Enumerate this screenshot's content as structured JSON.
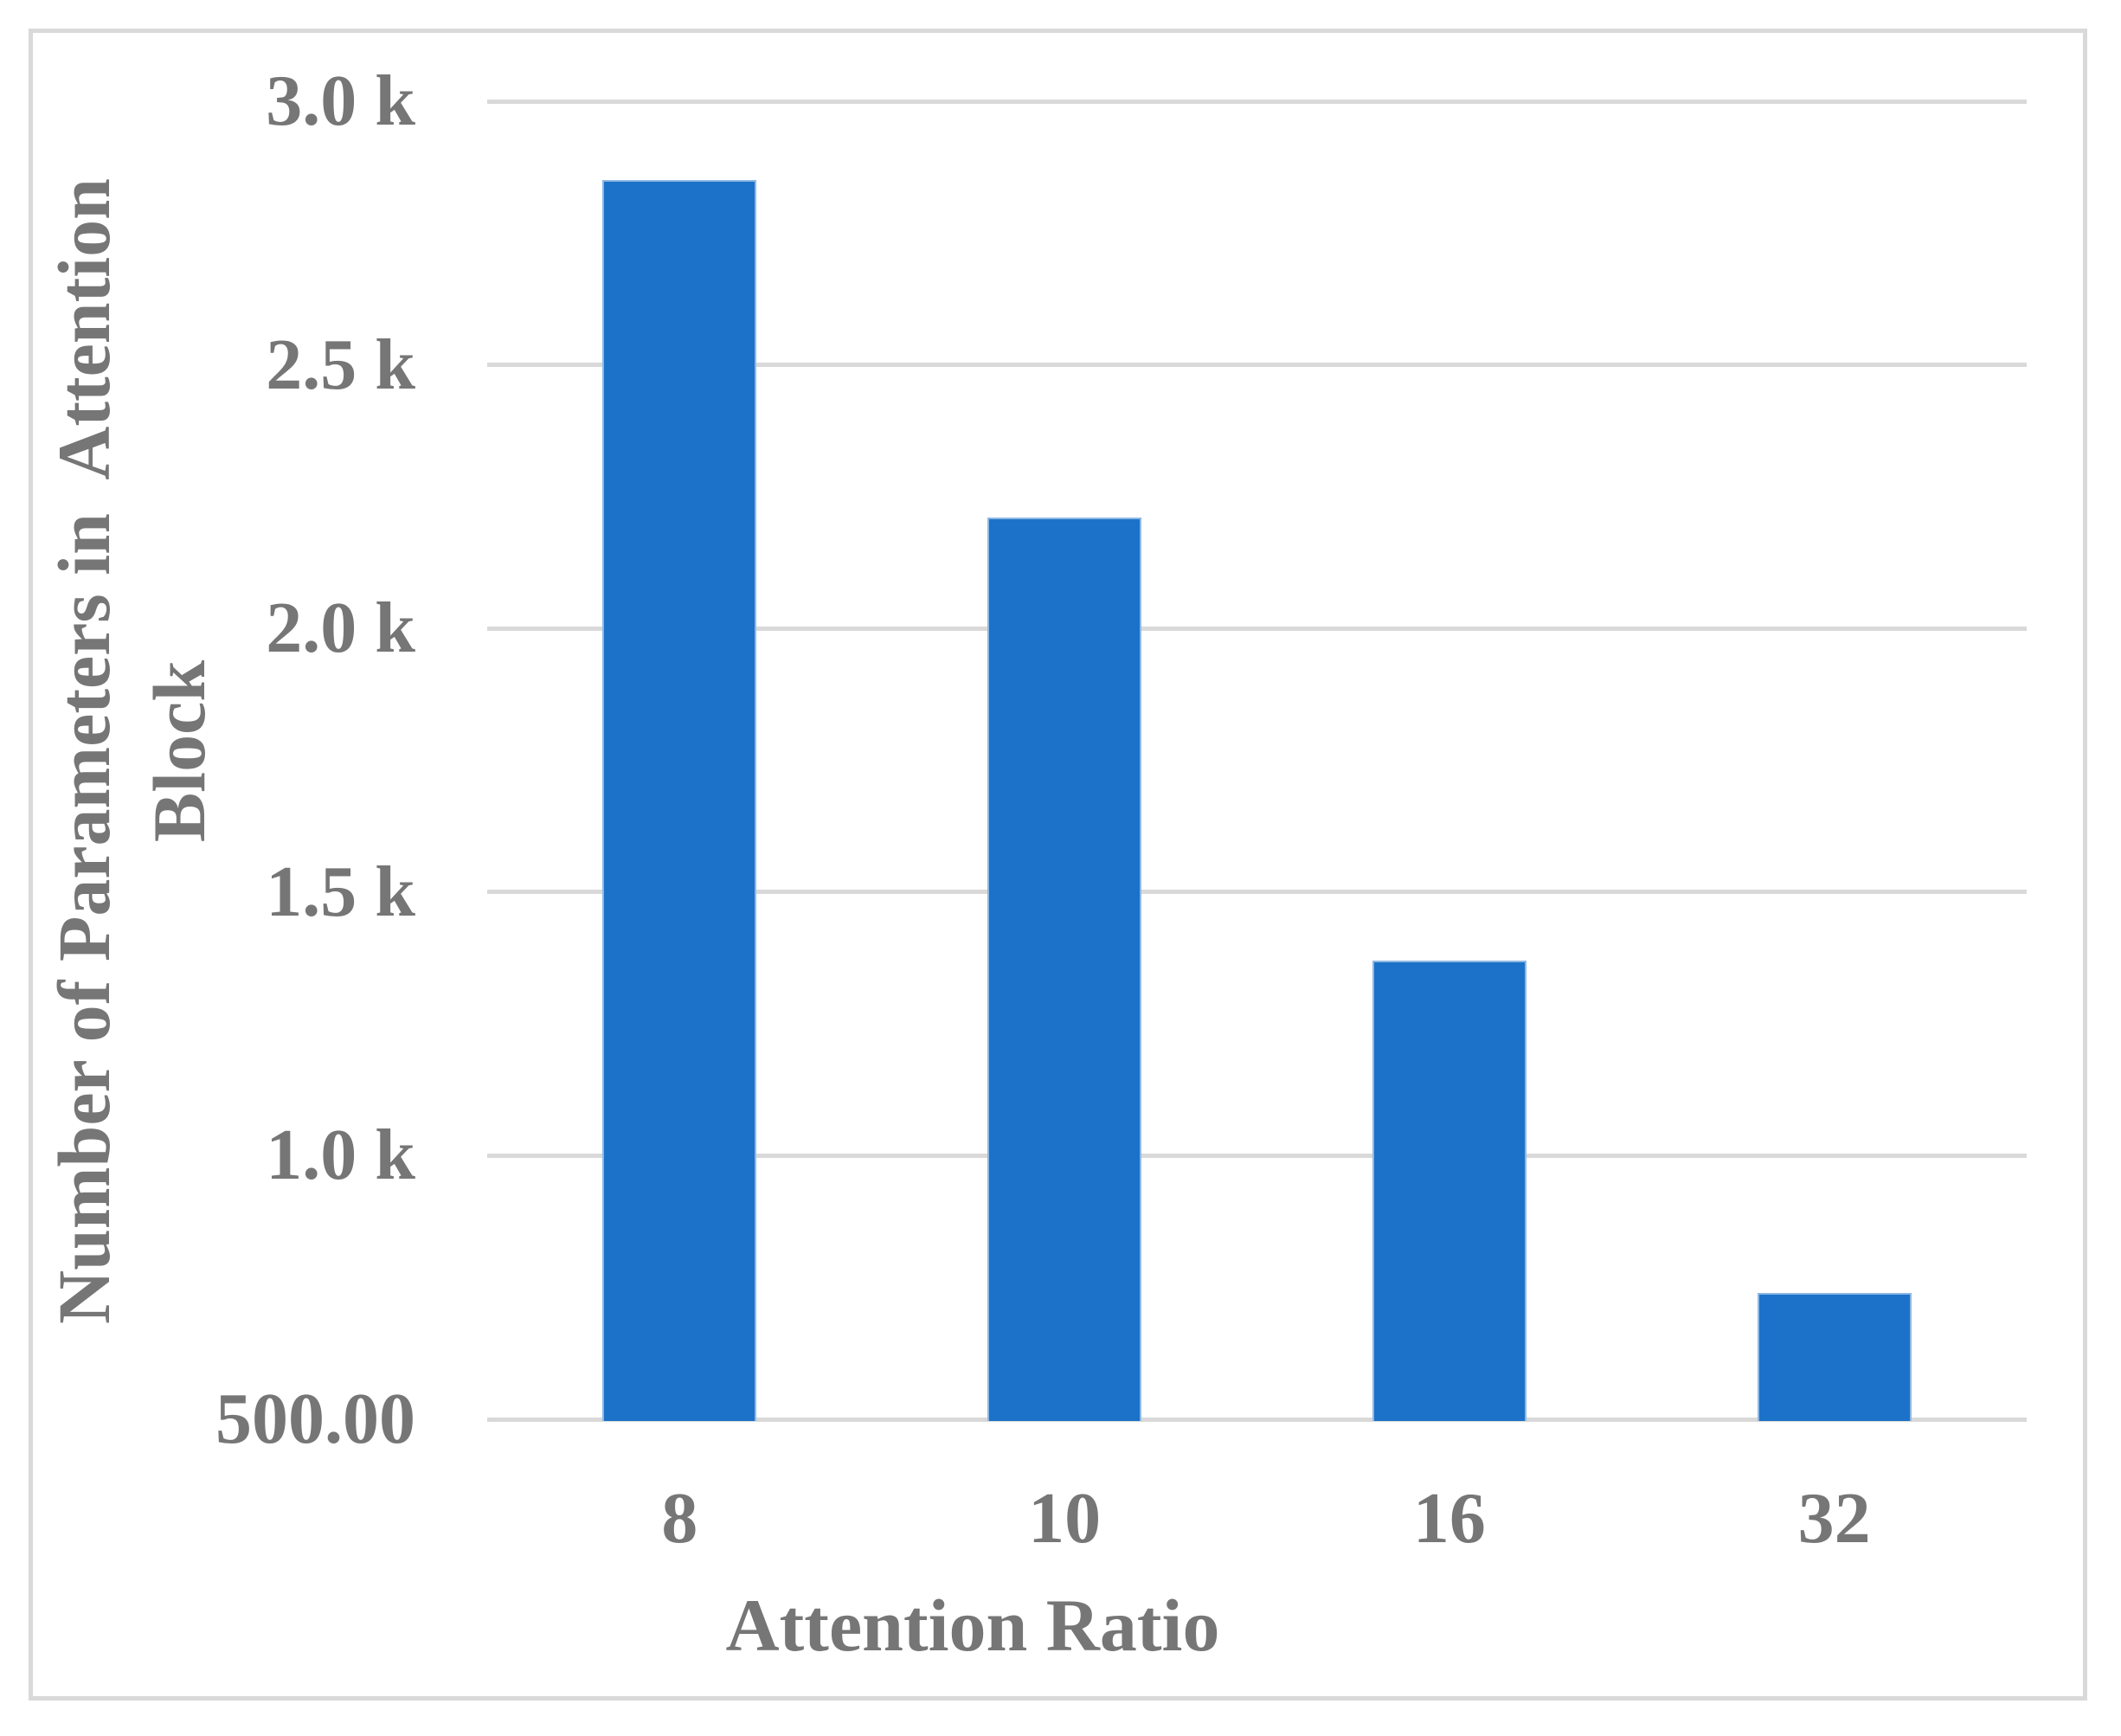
{
  "figure": {
    "background_color": "#ffffff",
    "frame_border_color": "#d9d9d9"
  },
  "chart_data": {
    "type": "bar",
    "title": "",
    "xlabel": "Attention Ratio",
    "ylabel": "Number of Parameters in  Attention\nBlock",
    "categories": [
      "8",
      "10",
      "16",
      "32"
    ],
    "values": [
      2850,
      2210,
      1370,
      740
    ],
    "ylim": [
      500,
      3000
    ],
    "y_ticks": [
      {
        "value": 3000,
        "label": "3.0 k"
      },
      {
        "value": 2500,
        "label": "2.5 k"
      },
      {
        "value": 2000,
        "label": "2.0 k"
      },
      {
        "value": 1500,
        "label": "1.5 k"
      },
      {
        "value": 1000,
        "label": "1.0 k"
      },
      {
        "value": 500,
        "label": "500.00"
      }
    ],
    "grid": true,
    "legend": "none",
    "bar_color": "#1b72c8",
    "bar_border_color": "#8fb8e4",
    "gridline_color": "#d9d9d9",
    "text_color": "#767676"
  }
}
